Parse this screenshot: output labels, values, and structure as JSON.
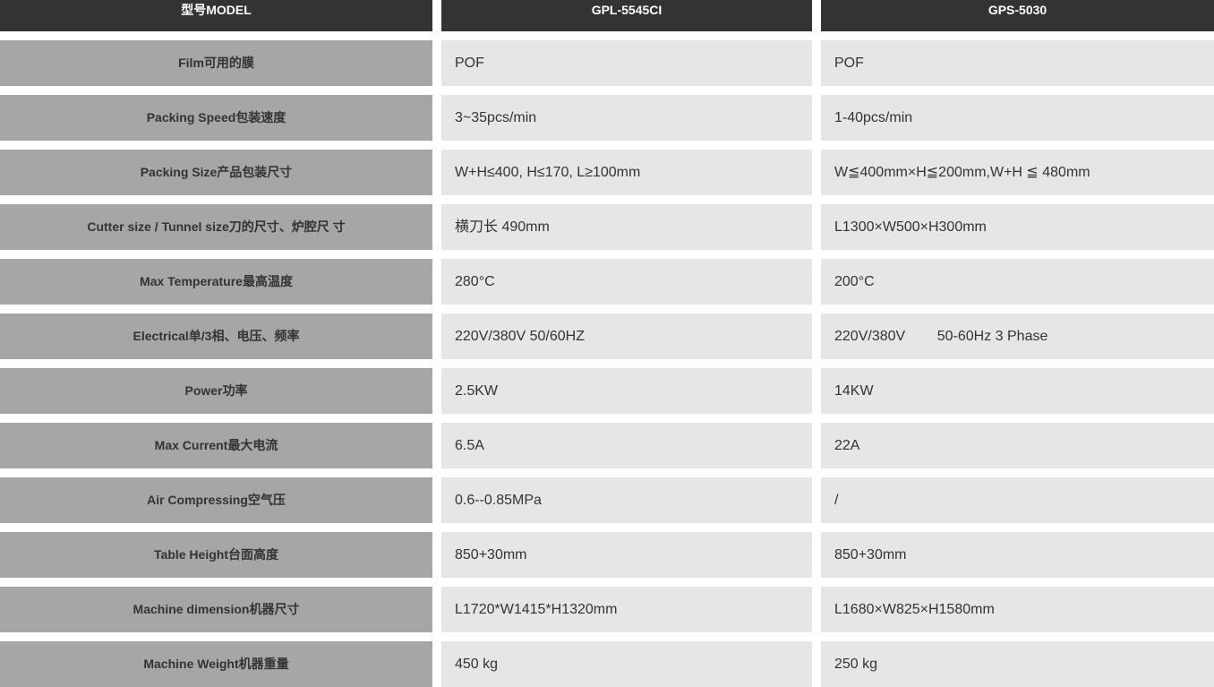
{
  "header": {
    "label": "型号MODEL",
    "model1": "GPL-5545CI",
    "model2": "GPS-5030"
  },
  "rows": [
    {
      "label": "Film可用的膜",
      "v1": "POF",
      "v2": "POF"
    },
    {
      "label": "Packing Speed包装速度",
      "v1": "3~35pcs/min",
      "v2": "1-40pcs/min"
    },
    {
      "label": "Packing Size产品包装尺寸",
      "v1": "W+H≤400, H≤170, L≥100mm",
      "v2": "W≦400mm×H≦200mm,W+H ≦ 480mm"
    },
    {
      "label": "Cutter size / Tunnel size刀的尺寸、炉腔尺 寸",
      "v1": "横刀长 490mm",
      "v2": "L1300×W500×H300mm"
    },
    {
      "label": "Max Temperature最高温度",
      "v1": "280°C",
      "v2": "200°C"
    },
    {
      "label": "Electrical单/3相、电压、频率",
      "v1": "220V/380V 50/60HZ",
      "v2": "220V/380V        50-60Hz 3 Phase"
    },
    {
      "label": "Power功率",
      "v1": "2.5KW",
      "v2": "14KW"
    },
    {
      "label": "Max Current最大电流",
      "v1": "6.5A",
      "v2": "22A"
    },
    {
      "label": "Air Compressing空气压",
      "v1": "0.6--0.85MPa",
      "v2": "/"
    },
    {
      "label": "Table Height台面高度",
      "v1": "850+30mm",
      "v2": "850+30mm"
    },
    {
      "label": "Machine dimension机器尺寸",
      "v1": "L1720*W1415*H1320mm",
      "v2": "L1680×W825×H1580mm"
    },
    {
      "label": "Machine Weight机器重量",
      "v1": "450 kg",
      "v2": "250 kg"
    }
  ]
}
